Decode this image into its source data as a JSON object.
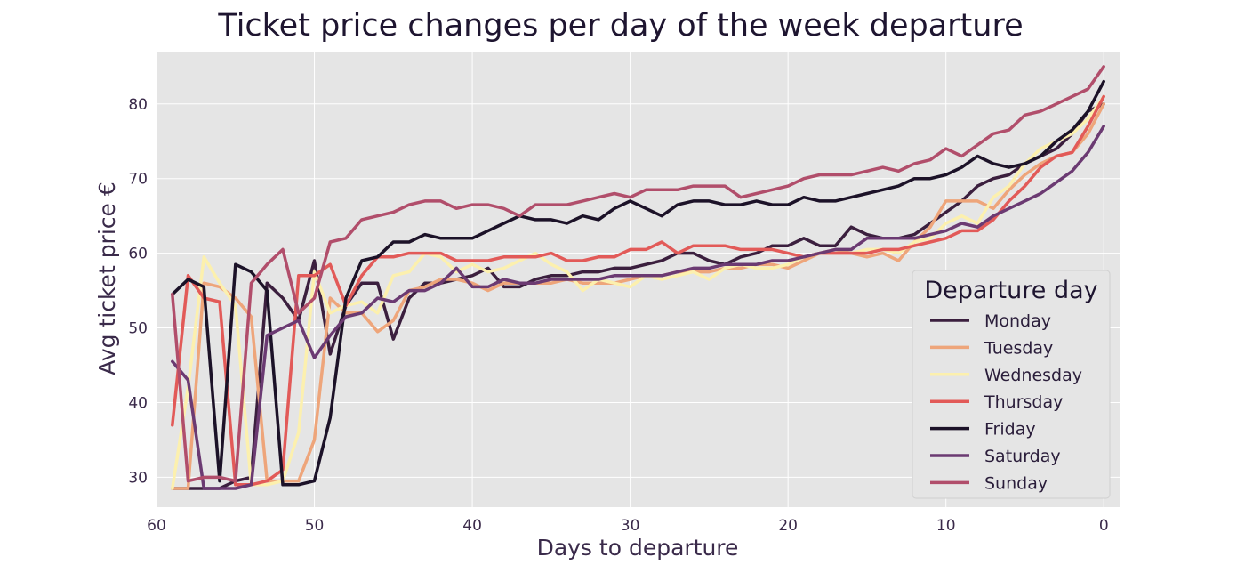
{
  "chart_data": {
    "type": "line",
    "title": "Ticket price changes per day of the week departure",
    "xlabel": "Days to departure",
    "ylabel": "Avg ticket price €",
    "xlim": [
      60,
      -1
    ],
    "ylim": [
      26,
      87
    ],
    "x_ticks": [
      60,
      50,
      40,
      30,
      20,
      10,
      0
    ],
    "y_ticks": [
      30,
      40,
      50,
      60,
      70,
      80
    ],
    "x_tick_labels": [
      "60",
      "50",
      "40",
      "30",
      "20",
      "10",
      "0"
    ],
    "y_tick_labels": [
      "30",
      "40",
      "50",
      "60",
      "70",
      "80"
    ],
    "grid": true,
    "x_reversed": true,
    "legend_title": "Departure day",
    "legend_position": "center-right",
    "colors": {
      "plot_background": "#e5e5e5",
      "grid": "#ffffff"
    },
    "series": [
      {
        "name": "Monday",
        "color": "#3b1f3e",
        "x": [
          59,
          58,
          57,
          56,
          55,
          54,
          53,
          52,
          51,
          50,
          49,
          48,
          47,
          46,
          45,
          44,
          43,
          42,
          41,
          40,
          39,
          38,
          37,
          36,
          35,
          34,
          33,
          32,
          31,
          30,
          29,
          28,
          27,
          26,
          25,
          24,
          23,
          22,
          21,
          20,
          19,
          18,
          17,
          16,
          15,
          14,
          13,
          12,
          11,
          10,
          9,
          8,
          7,
          6,
          5,
          4,
          3,
          2,
          1,
          0
        ],
        "values": [
          28.5,
          28.5,
          28.5,
          28.5,
          29.5,
          30,
          56,
          54,
          51,
          59,
          46.5,
          53,
          56,
          56,
          48.5,
          54,
          56,
          56,
          56.5,
          57,
          58,
          55.5,
          55.5,
          56.5,
          57,
          57,
          57.5,
          57.5,
          58,
          58,
          58.5,
          59,
          60,
          60,
          59,
          58.5,
          59.5,
          60,
          61,
          61,
          62,
          61,
          61,
          63.5,
          62.5,
          62,
          62,
          62.5,
          64,
          65.5,
          67,
          69,
          70,
          70.5,
          72,
          73,
          74,
          76,
          79,
          80
        ]
      },
      {
        "name": "Tuesday",
        "color": "#eea57a",
        "x": [
          59,
          58,
          57,
          56,
          55,
          54,
          53,
          52,
          51,
          50,
          49,
          48,
          47,
          46,
          45,
          44,
          43,
          42,
          41,
          40,
          39,
          38,
          37,
          36,
          35,
          34,
          33,
          32,
          31,
          30,
          29,
          28,
          27,
          26,
          25,
          24,
          23,
          22,
          21,
          20,
          19,
          18,
          17,
          16,
          15,
          14,
          13,
          12,
          11,
          10,
          9,
          8,
          7,
          6,
          5,
          4,
          3,
          2,
          1,
          0
        ],
        "values": [
          28.5,
          28.5,
          56,
          55.5,
          54,
          51.5,
          29.5,
          29.5,
          29.5,
          35,
          54,
          52,
          52,
          49.5,
          51,
          55,
          55.5,
          56.5,
          56.5,
          56,
          55,
          56,
          56,
          56,
          56,
          56.5,
          56,
          56,
          56,
          56.5,
          57,
          57,
          57.5,
          57.5,
          57.5,
          58,
          58,
          58.5,
          58.5,
          58,
          59,
          60,
          60.5,
          60,
          59.5,
          60,
          59,
          61.5,
          63.5,
          67,
          67,
          67,
          66,
          68.5,
          70.5,
          72,
          73,
          73.5,
          76,
          80
        ]
      },
      {
        "name": "Wednesday",
        "color": "#fcf0ae",
        "x": [
          59,
          58,
          57,
          56,
          55,
          54,
          53,
          52,
          51,
          50,
          49,
          48,
          47,
          46,
          45,
          44,
          43,
          42,
          41,
          40,
          39,
          38,
          37,
          36,
          35,
          34,
          33,
          32,
          31,
          30,
          29,
          28,
          27,
          26,
          25,
          24,
          23,
          22,
          21,
          20,
          19,
          18,
          17,
          16,
          15,
          14,
          13,
          12,
          11,
          10,
          9,
          8,
          7,
          6,
          5,
          4,
          3,
          2,
          1,
          0
        ],
        "values": [
          28.5,
          42,
          59.5,
          56,
          53,
          29,
          29,
          29.5,
          36,
          57.5,
          52,
          53,
          53.5,
          52,
          57,
          57.5,
          60,
          59.5,
          57.5,
          58.5,
          57.5,
          58,
          59,
          60,
          58.5,
          57.5,
          55,
          56.5,
          56,
          55.5,
          57,
          56.5,
          57,
          57.5,
          56.5,
          58,
          58.5,
          58,
          58,
          58.5,
          59.5,
          60,
          60,
          60,
          60.5,
          60.5,
          60,
          61.5,
          62,
          64,
          65,
          64,
          67.5,
          69,
          72,
          74,
          75,
          76,
          78,
          81
        ]
      },
      {
        "name": "Thursday",
        "color": "#e25a58",
        "x": [
          59,
          58,
          57,
          56,
          55,
          54,
          53,
          52,
          51,
          50,
          49,
          48,
          47,
          46,
          45,
          44,
          43,
          42,
          41,
          40,
          39,
          38,
          37,
          36,
          35,
          34,
          33,
          32,
          31,
          30,
          29,
          28,
          27,
          26,
          25,
          24,
          23,
          22,
          21,
          20,
          19,
          18,
          17,
          16,
          15,
          14,
          13,
          12,
          11,
          10,
          9,
          8,
          7,
          6,
          5,
          4,
          3,
          2,
          1,
          0
        ],
        "values": [
          37,
          57,
          54,
          53.5,
          29,
          29,
          29.5,
          31,
          57,
          57,
          58.5,
          53,
          57,
          59.5,
          59.5,
          60,
          60,
          60,
          59,
          59,
          59,
          59.5,
          59.5,
          59.5,
          60,
          59,
          59,
          59.5,
          59.5,
          60.5,
          60.5,
          61.5,
          60,
          61,
          61,
          61,
          60.5,
          60.5,
          60.5,
          60,
          59.5,
          60,
          60,
          60,
          60,
          60.5,
          60.5,
          61,
          61.5,
          62,
          63,
          63,
          64.5,
          67,
          69,
          71.5,
          73,
          73.5,
          77,
          81
        ]
      },
      {
        "name": "Friday",
        "color": "#1c1228",
        "x": [
          59,
          58,
          57,
          56,
          55,
          54,
          53,
          52,
          51,
          50,
          49,
          48,
          47,
          46,
          45,
          44,
          43,
          42,
          41,
          40,
          39,
          38,
          37,
          36,
          35,
          34,
          33,
          32,
          31,
          30,
          29,
          28,
          27,
          26,
          25,
          24,
          23,
          22,
          21,
          20,
          19,
          18,
          17,
          16,
          15,
          14,
          13,
          12,
          11,
          10,
          9,
          8,
          7,
          6,
          5,
          4,
          3,
          2,
          1,
          0
        ],
        "values": [
          54.5,
          56.5,
          55.5,
          29.5,
          58.5,
          57.5,
          55,
          29,
          29,
          29.5,
          38,
          54,
          59,
          59.5,
          61.5,
          61.5,
          62.5,
          62,
          62,
          62,
          63,
          64,
          65,
          64.5,
          64.5,
          64,
          65,
          64.5,
          66,
          67,
          66,
          65,
          66.5,
          67,
          67,
          66.5,
          66.5,
          67,
          66.5,
          66.5,
          67.5,
          67,
          67,
          67.5,
          68,
          68.5,
          69,
          70,
          70,
          70.5,
          71.5,
          73,
          72,
          71.5,
          72,
          73,
          75,
          76.5,
          79,
          83
        ]
      },
      {
        "name": "Saturday",
        "color": "#6b3a72",
        "x": [
          59,
          58,
          57,
          56,
          55,
          54,
          53,
          52,
          51,
          50,
          49,
          48,
          47,
          46,
          45,
          44,
          43,
          42,
          41,
          40,
          39,
          38,
          37,
          36,
          35,
          34,
          33,
          32,
          31,
          30,
          29,
          28,
          27,
          26,
          25,
          24,
          23,
          22,
          21,
          20,
          19,
          18,
          17,
          16,
          15,
          14,
          13,
          12,
          11,
          10,
          9,
          8,
          7,
          6,
          5,
          4,
          3,
          2,
          1,
          0
        ],
        "values": [
          45.5,
          43,
          28.5,
          28.5,
          28.5,
          29,
          49,
          50,
          51,
          46,
          49,
          51.5,
          52,
          54,
          53.5,
          55,
          55,
          56,
          58,
          55.5,
          55.5,
          56.5,
          56,
          56,
          56.5,
          56.5,
          56.5,
          56.5,
          57,
          57,
          57,
          57,
          57.5,
          58,
          58,
          58.5,
          58.5,
          58.5,
          59,
          59,
          59.5,
          60,
          60.5,
          60.5,
          62,
          62,
          62,
          62,
          62.5,
          63,
          64,
          63.5,
          65,
          66,
          67,
          68,
          69.5,
          71,
          73.5,
          77
        ]
      },
      {
        "name": "Sunday",
        "color": "#b14e6b",
        "x": [
          59,
          58,
          57,
          56,
          55,
          54,
          53,
          52,
          51,
          50,
          49,
          48,
          47,
          46,
          45,
          44,
          43,
          42,
          41,
          40,
          39,
          38,
          37,
          36,
          35,
          34,
          33,
          32,
          31,
          30,
          29,
          28,
          27,
          26,
          25,
          24,
          23,
          22,
          21,
          20,
          19,
          18,
          17,
          16,
          15,
          14,
          13,
          12,
          11,
          10,
          9,
          8,
          7,
          6,
          5,
          4,
          3,
          2,
          1,
          0
        ],
        "values": [
          54.5,
          29.5,
          30,
          30,
          29.5,
          56,
          58.5,
          60.5,
          52,
          54,
          61.5,
          62,
          64.5,
          65,
          65.5,
          66.5,
          67,
          67,
          66,
          66.5,
          66.5,
          66,
          65,
          66.5,
          66.5,
          66.5,
          67,
          67.5,
          68,
          67.5,
          68.5,
          68.5,
          68.5,
          69,
          69,
          69,
          67.5,
          68,
          68.5,
          69,
          70,
          70.5,
          70.5,
          70.5,
          71,
          71.5,
          71,
          72,
          72.5,
          74,
          73,
          74.5,
          76,
          76.5,
          78.5,
          79,
          80,
          81,
          82,
          85
        ]
      }
    ]
  }
}
